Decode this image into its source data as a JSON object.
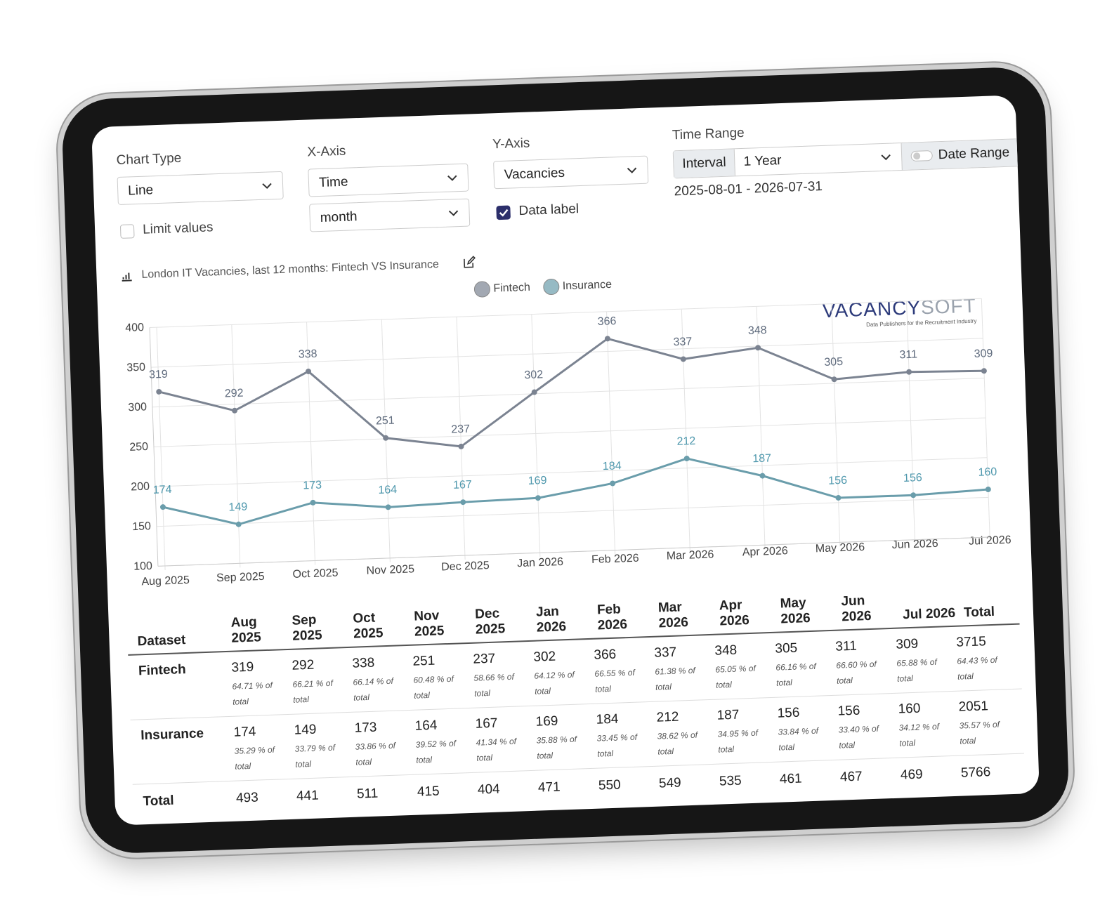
{
  "controls": {
    "chart_type": {
      "label": "Chart Type",
      "value": "Line"
    },
    "limit_values": {
      "label": "Limit values",
      "checked": false
    },
    "x_axis": {
      "label": "X-Axis",
      "value": "Time",
      "interval": "month"
    },
    "y_axis": {
      "label": "Y-Axis",
      "value": "Vacancies"
    },
    "data_label": {
      "label": "Data label",
      "checked": true
    },
    "time_range": {
      "label": "Time Range",
      "mode": "Interval",
      "value": "1 Year",
      "toggle": "Date Range",
      "dates": "2025-08-01 - 2026-07-31"
    }
  },
  "logo": {
    "word1": "VACANCY",
    "word2": "SOFT",
    "tagline": "Data Publishers for the Recruitment Industry"
  },
  "chart_data": {
    "type": "line",
    "title": "London IT Vacancies, last 12 months: Fintech VS Insurance",
    "categories": [
      "Aug 2025",
      "Sep 2025",
      "Oct 2025",
      "Nov 2025",
      "Dec 2025",
      "Jan 2026",
      "Feb 2026",
      "Mar 2026",
      "Apr 2026",
      "May 2026",
      "Jun 2026",
      "Jul 2026"
    ],
    "series": [
      {
        "name": "Fintech",
        "color": "#7b8391",
        "label_color": "#5f6b7d",
        "values": [
          319,
          292,
          338,
          251,
          237,
          302,
          366,
          337,
          348,
          305,
          311,
          309
        ]
      },
      {
        "name": "Insurance",
        "color": "#6a9dab",
        "label_color": "#4f98ad",
        "values": [
          174,
          149,
          173,
          164,
          167,
          169,
          184,
          212,
          187,
          156,
          156,
          160
        ]
      }
    ],
    "ylim": [
      100,
      400
    ],
    "yticks": [
      100,
      150,
      200,
      250,
      300,
      350,
      400
    ],
    "grid": true
  },
  "table": {
    "first_header": "Dataset",
    "last_header": "Total",
    "rows": [
      {
        "name": "Fintech",
        "shares": [
          "64.71 % of total",
          "66.21 % of total",
          "66.14 % of total",
          "60.48 % of total",
          "58.66 % of total",
          "64.12 % of total",
          "66.55 % of total",
          "61.38 % of total",
          "65.05 % of total",
          "66.16 % of total",
          "66.60 % of total",
          "65.88 % of total"
        ],
        "total": 3715,
        "total_share": "64.43 % of total"
      },
      {
        "name": "Insurance",
        "shares": [
          "35.29 % of total",
          "33.79 % of total",
          "33.86 % of total",
          "39.52 % of total",
          "41.34 % of total",
          "35.88 % of total",
          "33.45 % of total",
          "38.62 % of total",
          "34.95 % of total",
          "33.84 % of total",
          "33.40 % of total",
          "34.12 % of total"
        ],
        "total": 2051,
        "total_share": "35.57 % of total"
      }
    ],
    "total_row": {
      "name": "Total",
      "values": [
        493,
        441,
        511,
        415,
        404,
        471,
        550,
        549,
        535,
        461,
        467,
        469
      ],
      "total": 5766
    }
  }
}
